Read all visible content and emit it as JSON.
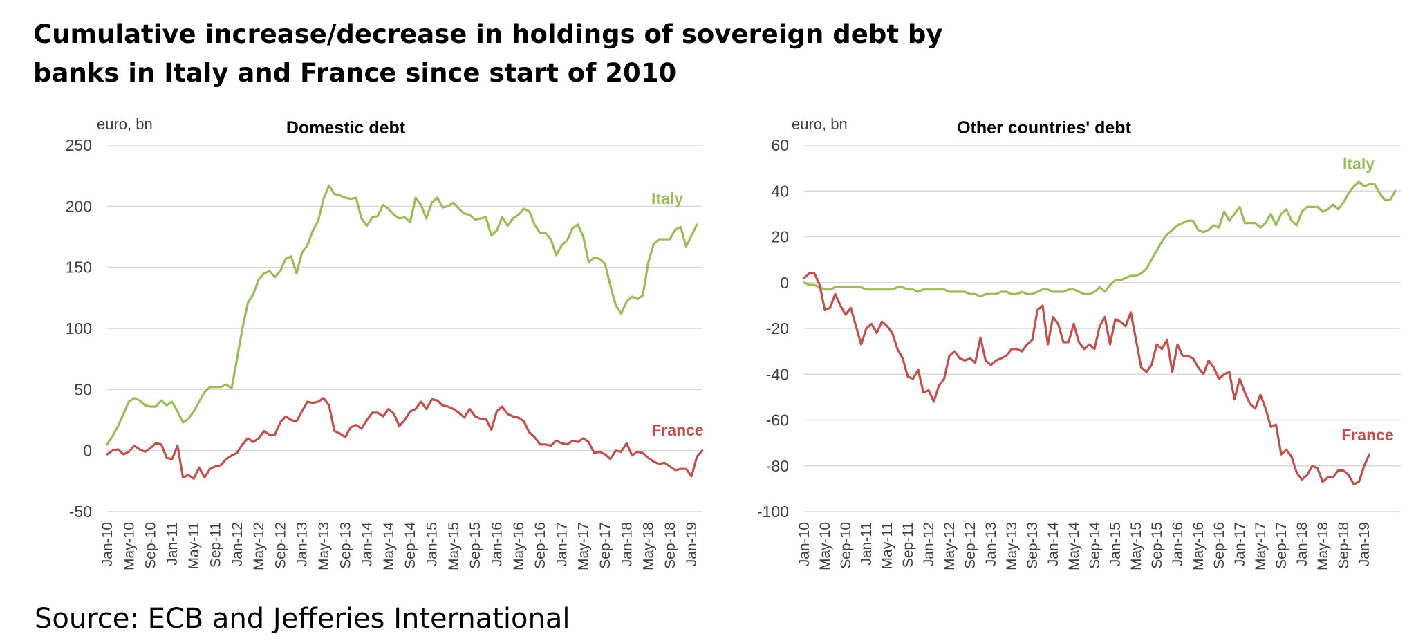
{
  "title_line1": "Cumulative increase/decrease in holdings of sovereign debt by",
  "title_line2": "banks in Italy and France since start of 2010",
  "source": "Source: ECB and Jefferies International",
  "colors": {
    "italy": "#9BBB59",
    "france": "#C0504D",
    "grid": "#D9D9D9",
    "text": "#404040"
  },
  "chart_data": [
    {
      "type": "line",
      "title": "Domestic debt",
      "ylabel": "euro, bn",
      "xlabel": "",
      "ylim": [
        -50,
        250
      ],
      "yticks": [
        -50,
        0,
        50,
        100,
        150,
        200,
        250
      ],
      "grid": true,
      "x_tick_labels": [
        "Jan-10",
        "May-10",
        "Sep-10",
        "Jan-11",
        "May-11",
        "Sep-11",
        "Jan-12",
        "May-12",
        "Sep-12",
        "Jan-13",
        "May-13",
        "Sep-13",
        "Jan-14",
        "May-14",
        "Sep-14",
        "Jan-15",
        "May-15",
        "Sep-15",
        "Jan-16",
        "May-16",
        "Sep-16",
        "Jan-17",
        "May-17",
        "Sep-17",
        "Jan-18",
        "May-18",
        "Sep-18",
        "Jan-19"
      ],
      "series": [
        {
          "name": "Italy",
          "values": [
            5,
            12,
            20,
            30,
            40,
            43,
            41,
            37,
            36,
            36,
            41,
            37,
            40,
            32,
            23,
            26,
            32,
            40,
            48,
            52,
            52,
            52,
            54,
            51,
            75,
            100,
            121,
            128,
            140,
            145,
            147,
            142,
            147,
            157,
            159,
            145,
            162,
            168,
            180,
            188,
            206,
            217,
            210,
            209,
            207,
            206,
            207,
            190,
            184,
            191,
            192,
            201,
            198,
            193,
            190,
            191,
            187,
            207,
            201,
            190,
            203,
            207,
            199,
            200,
            203,
            198,
            194,
            193,
            189,
            190,
            191,
            176,
            180,
            191,
            184,
            190,
            193,
            198,
            196,
            185,
            178,
            178,
            173,
            160,
            168,
            172,
            182,
            185,
            175,
            154,
            158,
            157,
            153,
            135,
            119,
            112,
            122,
            126,
            124,
            127,
            154,
            169,
            173,
            173,
            173,
            181,
            183,
            167,
            176,
            185
          ]
        },
        {
          "name": "France",
          "values": [
            -3,
            0,
            1,
            -3,
            -1,
            4,
            1,
            -1,
            2,
            6,
            5,
            -6,
            -7,
            4,
            -22,
            -20,
            -23,
            -14,
            -22,
            -15,
            -13,
            -12,
            -7,
            -4,
            -2,
            5,
            10,
            7,
            10,
            16,
            13,
            13,
            23,
            28,
            25,
            24,
            32,
            40,
            39,
            40,
            43,
            37,
            16,
            14,
            11,
            19,
            21,
            18,
            25,
            31,
            31,
            28,
            34,
            30,
            20,
            25,
            32,
            34,
            40,
            34,
            42,
            41,
            37,
            36,
            34,
            31,
            27,
            34,
            28,
            26,
            26,
            17,
            32,
            36,
            30,
            28,
            27,
            24,
            15,
            11,
            5,
            5,
            4,
            8,
            6,
            5,
            8,
            7,
            10,
            7,
            -2,
            -1,
            -3,
            -7,
            0,
            -1,
            6,
            -4,
            -1,
            -2,
            -6,
            -9,
            -11,
            -10,
            -13,
            -16,
            -15,
            -15,
            -21,
            -5,
            0
          ]
        }
      ],
      "labels": {
        "italy": "Italy",
        "france": "France"
      }
    },
    {
      "type": "line",
      "title": "Other countries' debt",
      "ylabel": "euro, bn",
      "xlabel": "",
      "ylim": [
        -100,
        60
      ],
      "yticks": [
        -100,
        -80,
        -60,
        -40,
        -20,
        0,
        20,
        40,
        60
      ],
      "grid": true,
      "x_tick_labels": [
        "Jan-10",
        "May-10",
        "Sep-10",
        "Jan-11",
        "May-11",
        "Sep-11",
        "Jan-12",
        "May-12",
        "Sep-12",
        "Jan-13",
        "May-13",
        "Sep-13",
        "Jan-14",
        "May-14",
        "Sep-14",
        "Jan-15",
        "May-15",
        "Sep-15",
        "Jan-16",
        "May-16",
        "Sep-16",
        "Jan-17",
        "May-17",
        "Sep-17",
        "Jan-18",
        "May-18",
        "Sep-18",
        "Jan-19"
      ],
      "series": [
        {
          "name": "Italy",
          "values": [
            0,
            -1,
            -1,
            -2,
            -3,
            -3,
            -2,
            -2,
            -2,
            -2,
            -2,
            -2,
            -3,
            -3,
            -3,
            -3,
            -3,
            -3,
            -2,
            -2,
            -3,
            -3,
            -4,
            -3,
            -3,
            -3,
            -3,
            -3,
            -4,
            -4,
            -4,
            -4,
            -5,
            -5,
            -6,
            -5,
            -5,
            -5,
            -4,
            -4,
            -5,
            -5,
            -4,
            -5,
            -5,
            -4,
            -3,
            -3,
            -4,
            -4,
            -4,
            -3,
            -3,
            -4,
            -5,
            -5,
            -4,
            -2,
            -4,
            -1,
            1,
            1,
            2,
            3,
            3,
            4,
            6,
            10,
            14,
            18,
            21,
            23,
            25,
            26,
            27,
            27,
            23,
            22,
            23,
            25,
            24,
            31,
            27,
            30,
            33,
            26,
            26,
            26,
            24,
            26,
            30,
            25,
            30,
            32,
            27,
            25,
            31,
            33,
            33,
            33,
            31,
            32,
            34,
            32,
            35,
            39,
            42,
            44,
            42,
            43,
            43,
            39,
            36,
            36,
            40
          ]
        },
        {
          "name": "France",
          "values": [
            2,
            4,
            4,
            -1,
            -12,
            -11,
            -5,
            -10,
            -14,
            -11,
            -19,
            -27,
            -20,
            -18,
            -22,
            -17,
            -19,
            -22,
            -29,
            -33,
            -41,
            -42,
            -38,
            -48,
            -47,
            -52,
            -45,
            -42,
            -32,
            -30,
            -33,
            -34,
            -33,
            -35,
            -24,
            -34,
            -36,
            -34,
            -33,
            -32,
            -29,
            -29,
            -30,
            -27,
            -25,
            -12,
            -10,
            -27,
            -15,
            -18,
            -26,
            -26,
            -18,
            -26,
            -29,
            -27,
            -29,
            -19,
            -15,
            -27,
            -16,
            -17,
            -19,
            -13,
            -25,
            -37,
            -39,
            -36,
            -27,
            -29,
            -25,
            -39,
            -27,
            -32,
            -32,
            -33,
            -37,
            -40,
            -34,
            -37,
            -42,
            -40,
            -39,
            -51,
            -42,
            -48,
            -53,
            -55,
            -49,
            -55,
            -63,
            -62,
            -75,
            -73,
            -76,
            -83,
            -86,
            -84,
            -80,
            -81,
            -87,
            -85,
            -85,
            -82,
            -82,
            -84,
            -88,
            -87,
            -80,
            -75
          ]
        }
      ],
      "labels": {
        "italy": "Italy",
        "france": "France"
      }
    }
  ]
}
